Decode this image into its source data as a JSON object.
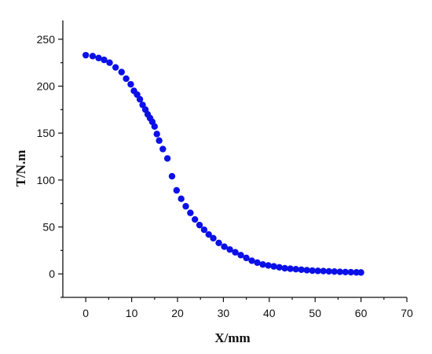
{
  "chart_data": {
    "type": "scatter",
    "title": "",
    "xlabel": "X/mm",
    "ylabel": "T/N.m",
    "xlim": [
      -5,
      70
    ],
    "ylim": [
      -25,
      270
    ],
    "xticks": [
      0,
      10,
      20,
      30,
      40,
      50,
      60,
      70
    ],
    "yticks": [
      0,
      50,
      100,
      150,
      200,
      250
    ],
    "grid": false,
    "legend": "none",
    "marker_color": "#0b10e8",
    "series": [
      {
        "x": [
          0,
          1.5,
          2.8,
          4,
          5.2,
          6.5,
          7.8,
          8.8,
          9.8,
          10.5,
          11.2,
          11.8,
          12.4,
          13,
          13.5,
          14,
          14.5,
          15,
          15.5,
          16,
          16.8,
          17.8,
          18.8,
          19.8,
          20.8,
          21.8,
          22.8,
          23.8,
          24.8,
          25.8,
          26.8,
          27.8,
          29,
          30.2,
          31.4,
          32.6,
          33.8,
          35,
          36.2,
          37.4,
          38.6,
          39.8,
          41,
          42.2,
          43.4,
          44.6,
          45.8,
          47,
          48.2,
          49.4,
          50.6,
          51.8,
          53,
          54.2,
          55.4,
          56.6,
          57.8,
          59,
          60
        ],
        "y": [
          233,
          232,
          230,
          228,
          225,
          220,
          215,
          208,
          202,
          195,
          191,
          186,
          180,
          175,
          170,
          166,
          162,
          157,
          149,
          142,
          133,
          123,
          104,
          89,
          80,
          72,
          65,
          58,
          52,
          47,
          42,
          38,
          33,
          29,
          26,
          23,
          20,
          17,
          14,
          12,
          10,
          9,
          8,
          7,
          6,
          5.5,
          5,
          4.5,
          4,
          3.5,
          3.2,
          3,
          2.7,
          2.5,
          2.2,
          2,
          1.8,
          1.6,
          1.5
        ]
      }
    ]
  }
}
